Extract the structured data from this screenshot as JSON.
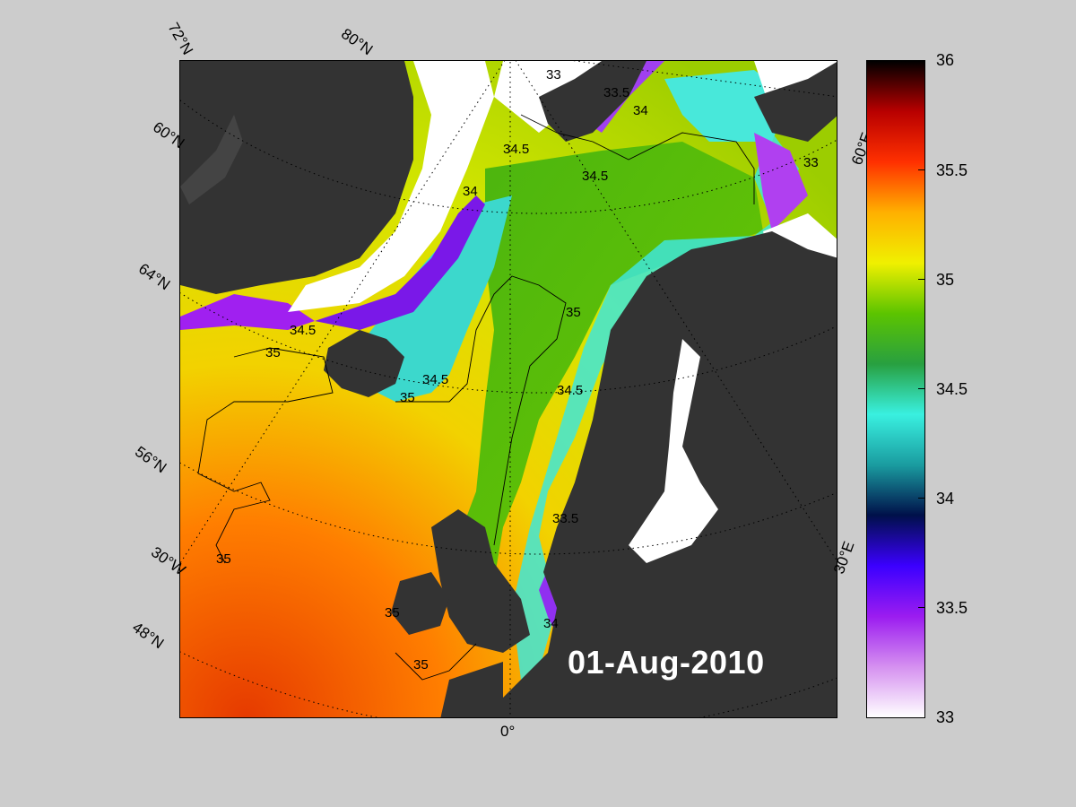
{
  "map": {
    "date": "01-Aug-2010",
    "lat_labels": [
      "72°N",
      "60°N",
      "64°N",
      "56°N",
      "48°N"
    ],
    "lon_labels": [
      "80°N",
      "60°E",
      "30°W",
      "30°E",
      "0°"
    ]
  },
  "contours": [
    {
      "label": "33"
    },
    {
      "label": "33.5"
    },
    {
      "label": "34"
    },
    {
      "label": "34.5"
    },
    {
      "label": "35"
    }
  ],
  "colorbar": {
    "ticks": [
      "36",
      "35.5",
      "35",
      "34.5",
      "34",
      "33.5",
      "33"
    ],
    "range": [
      33,
      36
    ],
    "colors": [
      "#ffffff",
      "#d590f0",
      "#9b1cf0",
      "#3b00ff",
      "#00104a",
      "#1a9ca0",
      "#39f0e0",
      "#28a040",
      "#5cc400",
      "#f0f000",
      "#ffb000",
      "#ff3000",
      "#b80000",
      "#000000"
    ]
  }
}
